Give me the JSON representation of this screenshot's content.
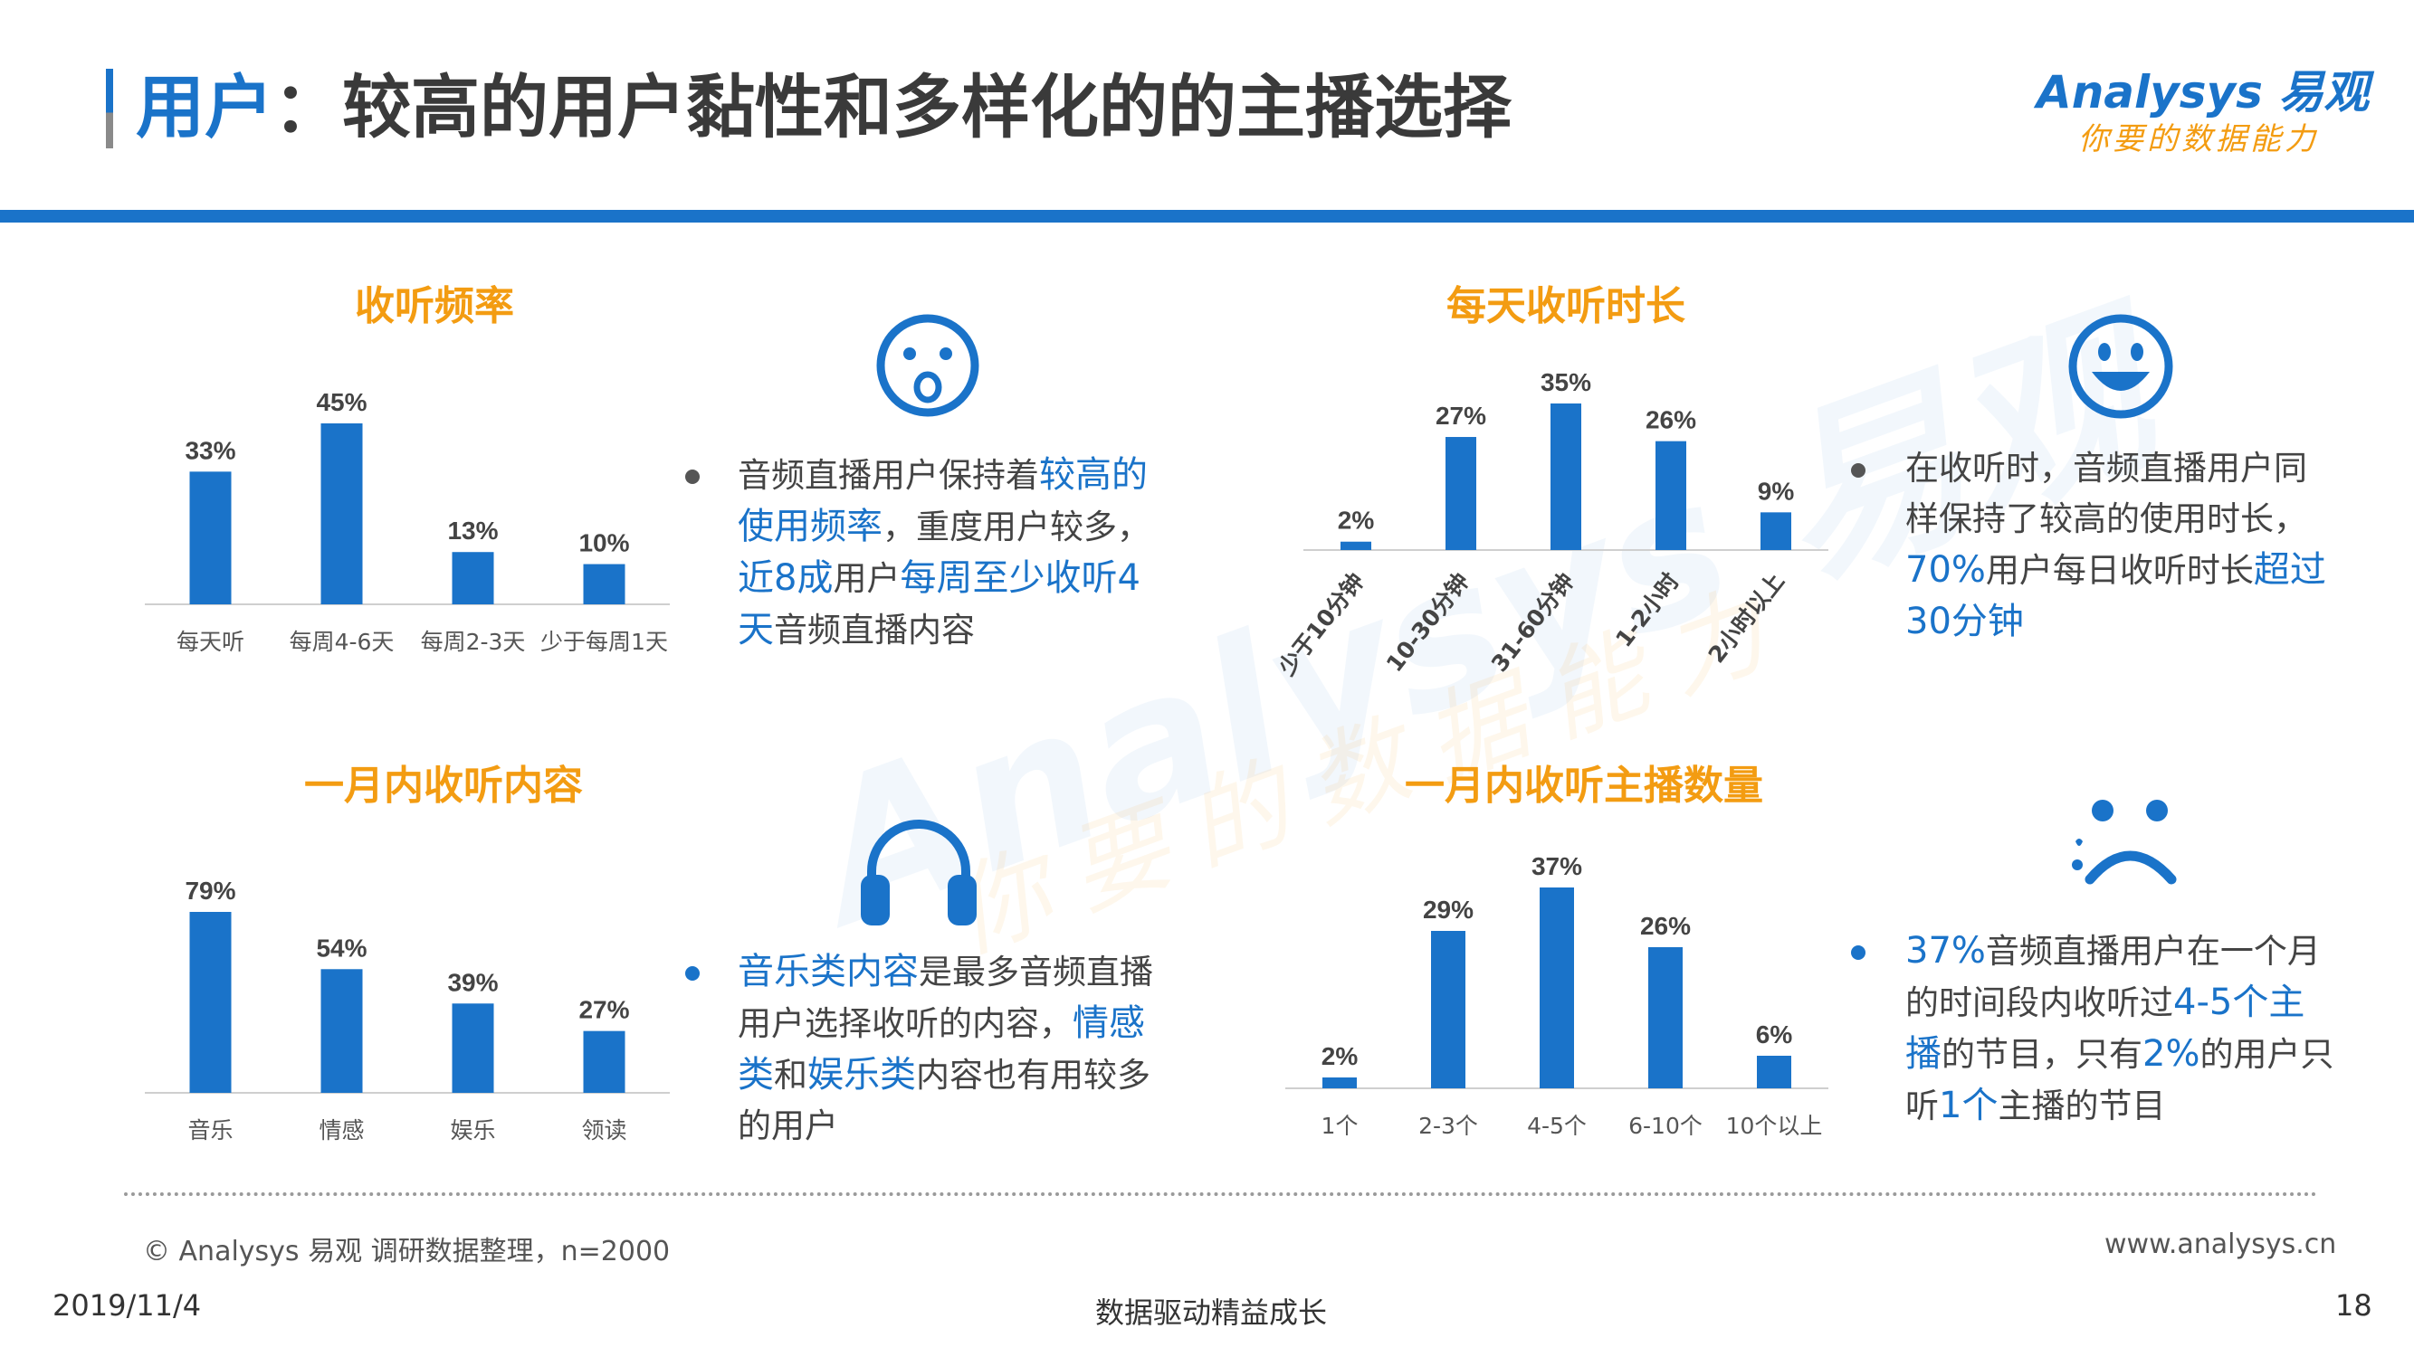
{
  "header": {
    "title_highlight": "用户",
    "title_rest": "：较高的用户黏性和多样化的的主播选择",
    "logo_main": "Analysys 易观",
    "logo_sub": "你要的数据能力"
  },
  "colors": {
    "brand_blue": "#1a73c9",
    "accent_orange": "#f39c12",
    "bullet_gray": "#555555"
  },
  "chart_data": [
    {
      "type": "bar",
      "title": "收听频率",
      "categories": [
        "每天听",
        "每周4-6天",
        "每周2-3天",
        "少于每周1天"
      ],
      "values": [
        33,
        45,
        13,
        10
      ],
      "value_labels": [
        "33%",
        "45%",
        "13%",
        "10%"
      ],
      "ylim": [
        0,
        45
      ]
    },
    {
      "type": "bar",
      "title": "每天收听时长",
      "categories": [
        "少于10分钟",
        "10-30分钟",
        "31-60分钟",
        "1-2小时",
        "2小时以上"
      ],
      "values": [
        2,
        27,
        35,
        26,
        9
      ],
      "value_labels": [
        "2%",
        "27%",
        "35%",
        "26%",
        "9%"
      ],
      "ylim": [
        0,
        35
      ]
    },
    {
      "type": "bar",
      "title": "一月内收听内容",
      "categories": [
        "音乐",
        "情感",
        "娱乐",
        "领读"
      ],
      "values": [
        79,
        54,
        39,
        27
      ],
      "value_labels": [
        "79%",
        "54%",
        "39%",
        "27%"
      ],
      "ylim": [
        0,
        79
      ]
    },
    {
      "type": "bar",
      "title": "一月内收听主播数量",
      "categories": [
        "1个",
        "2-3个",
        "4-5个",
        "6-10个",
        "10个以上"
      ],
      "values": [
        2,
        29,
        37,
        26,
        6
      ],
      "value_labels": [
        "2%",
        "29%",
        "37%",
        "26%",
        "6%"
      ],
      "ylim": [
        0,
        37
      ]
    }
  ],
  "icons": [
    "surprised-face-icon",
    "smiley-face-icon",
    "headphones-icon",
    "sad-face-icon"
  ],
  "bullets": [
    {
      "dot_color": "gray",
      "segments": [
        {
          "text": "音频直播用户保持着",
          "hl": false
        },
        {
          "text": "较高的使用频率",
          "hl": true
        },
        {
          "text": "，重度用户较多，",
          "hl": false
        },
        {
          "text": "近8成",
          "hl": true
        },
        {
          "text": "用户",
          "hl": false
        },
        {
          "text": "每周至少收听4天",
          "hl": true
        },
        {
          "text": "音频直播内容",
          "hl": false
        }
      ]
    },
    {
      "dot_color": "gray",
      "segments": [
        {
          "text": "在收听时，音频直播用户同样保持了较高的使用时长，",
          "hl": false
        },
        {
          "text": "70%",
          "hl": true
        },
        {
          "text": "用户每日收听时长",
          "hl": false
        },
        {
          "text": "超过30分钟",
          "hl": true
        }
      ]
    },
    {
      "dot_color": "blue",
      "segments": [
        {
          "text": "音乐类内容",
          "hl": true
        },
        {
          "text": "是最多音频直播用户选择收听的内容，",
          "hl": false
        },
        {
          "text": "情感类",
          "hl": true
        },
        {
          "text": "和",
          "hl": false
        },
        {
          "text": "娱乐类",
          "hl": true
        },
        {
          "text": "内容也有用较多的用户",
          "hl": false
        }
      ]
    },
    {
      "dot_color": "blue",
      "segments": [
        {
          "text": "37%",
          "hl": true
        },
        {
          "text": "音频直播用户在一个月的时间段内收听过",
          "hl": false
        },
        {
          "text": "4-5个主播",
          "hl": true
        },
        {
          "text": "的节目，只有",
          "hl": false
        },
        {
          "text": "2%",
          "hl": true
        },
        {
          "text": "的用户只听",
          "hl": false
        },
        {
          "text": "1个",
          "hl": true
        },
        {
          "text": "主播的节目",
          "hl": false
        }
      ]
    }
  ],
  "footer": {
    "source": "© Analysys 易观 调研数据整理，n=2000",
    "website": "www.analysys.cn",
    "date": "2019/11/4",
    "slogan": "数据驱动精益成长",
    "page_number": "18"
  }
}
